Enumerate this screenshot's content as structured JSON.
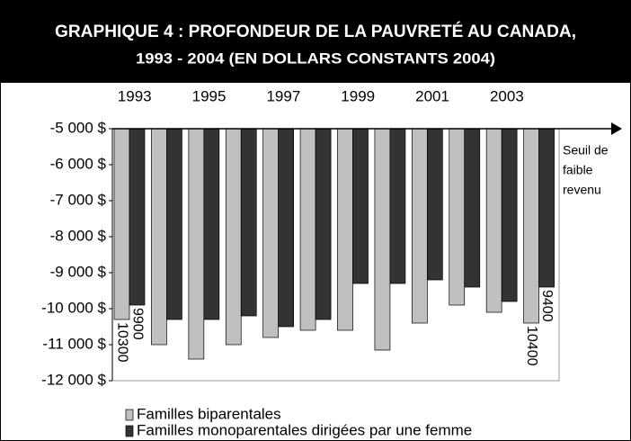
{
  "chart_data": {
    "type": "bar",
    "title": "GRAPHIQUE 4 : PROFONDEUR DE LA PAUVRETÉ AU CANADA,",
    "subtitle": "1993 - 2004 (EN DOLLARS CONSTANTS 2004)",
    "annotation": [
      "Seuil de",
      "faible",
      "revenu"
    ],
    "categories": [
      "1993",
      null,
      "1995",
      null,
      "1997",
      null,
      "1999",
      null,
      "2001",
      null,
      "2003",
      null
    ],
    "series": [
      {
        "name": "Familles biparentales",
        "color": "#c0c0c0",
        "values": [
          -10300,
          -11000,
          -11400,
          -11000,
          -10800,
          -10600,
          -10600,
          -11150,
          -10400,
          -9900,
          -10100,
          -10400
        ],
        "value_labels": [
          "10300",
          null,
          null,
          null,
          null,
          null,
          null,
          null,
          null,
          null,
          null,
          "10400"
        ]
      },
      {
        "name": "Familles monoparentales dirigées par une femme",
        "color": "#333333",
        "values": [
          -9900,
          -10300,
          -10300,
          -10200,
          -10500,
          -10300,
          -9300,
          -9300,
          -9200,
          -9400,
          -9800,
          -9400
        ],
        "value_labels": [
          "9900",
          null,
          null,
          null,
          null,
          null,
          null,
          null,
          null,
          null,
          null,
          "9400"
        ]
      }
    ],
    "ylim": [
      -12000,
      -5000
    ],
    "yticks": [
      {
        "value": -5000,
        "label": "-5 000 $"
      },
      {
        "value": -6000,
        "label": "-6 000 $"
      },
      {
        "value": -7000,
        "label": "-7 000 $"
      },
      {
        "value": -8000,
        "label": "-8 000 $"
      },
      {
        "value": -9000,
        "label": "-9 000 $"
      },
      {
        "value": -10000,
        "label": "-10 000 $"
      },
      {
        "value": -11000,
        "label": "-11 000 $"
      },
      {
        "value": -12000,
        "label": "-12 000 $"
      }
    ],
    "legend": "bottom-left"
  }
}
